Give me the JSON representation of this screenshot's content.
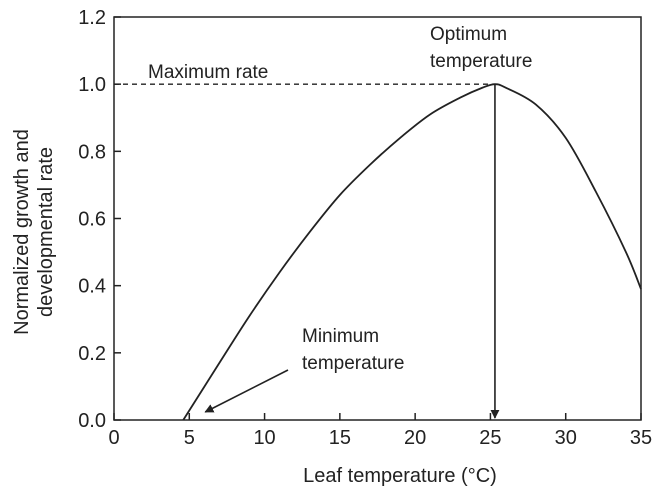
{
  "chart_data": {
    "type": "line",
    "xlabel": "Leaf temperature (°C)",
    "ylabel_lines": [
      "Normalized growth and",
      "developmental rate"
    ],
    "xlim": [
      0,
      35
    ],
    "ylim": [
      0,
      1.2
    ],
    "xticks": [
      0,
      5,
      10,
      15,
      20,
      25,
      30,
      35
    ],
    "yticks": [
      "0.0",
      "0.2",
      "0.4",
      "0.6",
      "0.8",
      "1.0",
      "1.2"
    ],
    "grid": false,
    "series": [
      {
        "x": [
          4.6,
          7,
          9,
          11,
          13,
          15,
          17,
          19,
          21,
          23,
          24.5,
          25.3,
          26,
          28,
          30,
          32,
          34,
          35
        ],
        "y": [
          0.0,
          0.17,
          0.31,
          0.44,
          0.56,
          0.67,
          0.76,
          0.84,
          0.91,
          0.96,
          0.99,
          1.0,
          0.99,
          0.94,
          0.84,
          0.68,
          0.5,
          0.39
        ]
      }
    ],
    "annotations": {
      "maximum_rate": {
        "text": "Maximum rate",
        "y": 1.0,
        "x_end": 25.3
      },
      "optimum_temperature": {
        "lines": [
          "Optimum",
          "temperature"
        ],
        "x": 25.3
      },
      "minimum_temperature": {
        "lines": [
          "Minimum",
          "temperature"
        ],
        "x": 4.6
      }
    },
    "colors": {
      "line": "#222222",
      "axis": "#222222",
      "text": "#222222"
    }
  }
}
